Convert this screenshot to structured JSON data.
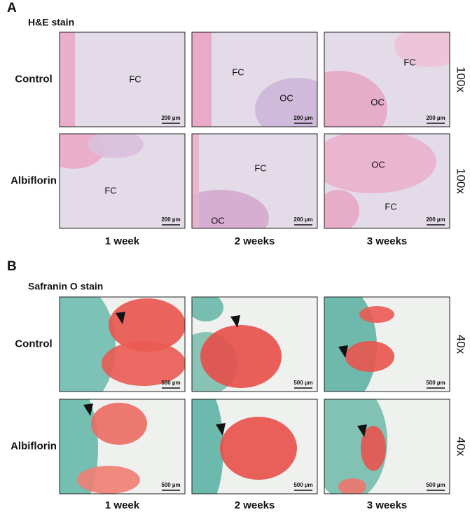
{
  "panels": [
    {
      "letter": "A",
      "stain": "H&E stain",
      "rows": [
        {
          "label": "Control",
          "magnification": "100x",
          "images": [
            {
              "labels": [
                "FC"
              ],
              "scale": "200 µm"
            },
            {
              "labels": [
                "FC",
                "OC"
              ],
              "scale": "200 µm"
            },
            {
              "labels": [
                "FC",
                "OC"
              ],
              "scale": "200 µm"
            }
          ]
        },
        {
          "label": "Albiflorin",
          "magnification": "100x",
          "images": [
            {
              "labels": [
                "FC"
              ],
              "scale": "200 µm"
            },
            {
              "labels": [
                "FC",
                "OC"
              ],
              "scale": "200 µm"
            },
            {
              "labels": [
                "OC",
                "FC"
              ],
              "scale": "200 µm"
            }
          ]
        }
      ],
      "columns": [
        "1 week",
        "2 weeks",
        "3 weeks"
      ]
    },
    {
      "letter": "B",
      "stain": "Safranin O stain",
      "rows": [
        {
          "label": "Control",
          "magnification": "40x",
          "images": [
            {
              "labels": [],
              "scale": "500 µm"
            },
            {
              "labels": [],
              "scale": "500 µm"
            },
            {
              "labels": [],
              "scale": "500 µm"
            }
          ]
        },
        {
          "label": "Albiflorin",
          "magnification": "40x",
          "images": [
            {
              "labels": [],
              "scale": "500 µm"
            },
            {
              "labels": [],
              "scale": "500 µm"
            },
            {
              "labels": [],
              "scale": "500 µm"
            }
          ]
        }
      ],
      "columns": [
        "1 week",
        "2 weeks",
        "3 weeks"
      ]
    }
  ]
}
